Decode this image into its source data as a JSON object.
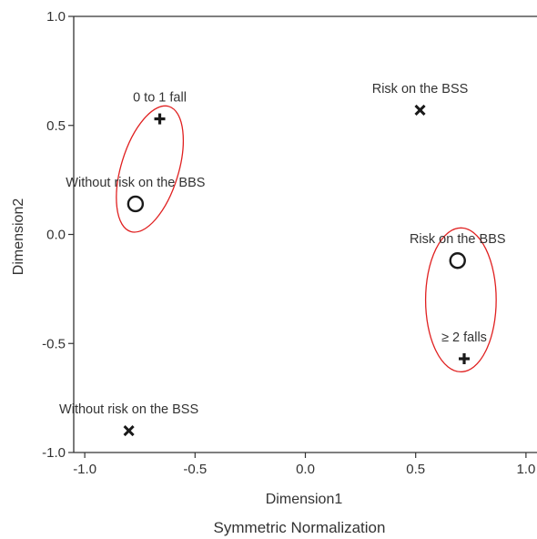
{
  "chart_data": {
    "type": "scatter",
    "xlabel": "Dimension1",
    "ylabel": "Dimension2",
    "caption": "Symmetric Normalization",
    "xlim": [
      -1.05,
      1.05
    ],
    "ylim": [
      -1.0,
      1.0
    ],
    "xticks": [
      -1.0,
      -0.5,
      0.0,
      0.5,
      1.0
    ],
    "xtick_labels": [
      "-1.0",
      "-0.5",
      "0.0",
      "0.5",
      "1.0"
    ],
    "yticks": [
      1.0,
      0.5,
      0.0,
      -0.5,
      -1.0
    ],
    "ytick_labels": [
      "1.0",
      "0.5",
      "0.0",
      "-0.5",
      "-1.0"
    ],
    "grid": false,
    "points": [
      {
        "label": "0 to 1 fall",
        "x": -0.66,
        "y": 0.53,
        "marker": "plus"
      },
      {
        "label": "≥ 2 falls",
        "x": 0.72,
        "y": -0.57,
        "marker": "plus"
      },
      {
        "label": "Without risk on the BBS",
        "x": -0.77,
        "y": 0.14,
        "marker": "circle"
      },
      {
        "label": "Risk on the BBS",
        "x": 0.69,
        "y": -0.12,
        "marker": "circle"
      },
      {
        "label": "Risk on the BSS",
        "x": 0.52,
        "y": 0.57,
        "marker": "x"
      },
      {
        "label": "Without risk on the BSS",
        "x": -0.8,
        "y": -0.9,
        "marker": "x"
      }
    ],
    "annotations": [
      {
        "shape": "ellipse",
        "color": "#e02020",
        "cx": -0.705,
        "cy": 0.3,
        "rx": 0.13,
        "ry": 0.3,
        "rotate_deg": 17
      },
      {
        "shape": "ellipse",
        "color": "#e02020",
        "cx": 0.705,
        "cy": -0.3,
        "rx": 0.16,
        "ry": 0.33,
        "rotate_deg": 0
      }
    ],
    "colors": {
      "markers": "#1a1a1a",
      "axis": "#333333",
      "ellipse": "#e02020"
    }
  }
}
